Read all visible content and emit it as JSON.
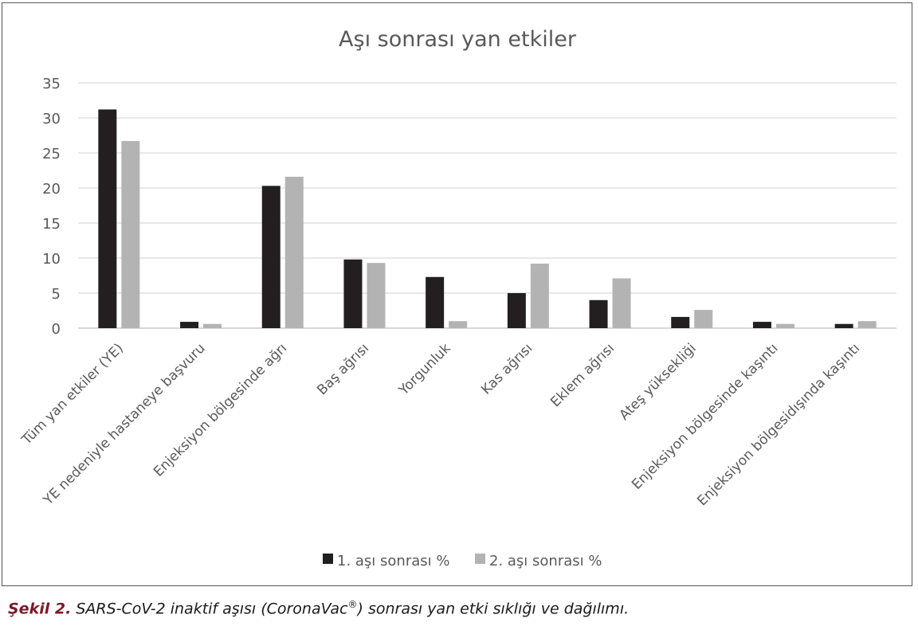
{
  "chart_data": {
    "type": "bar",
    "title": "Aşı sonrası yan etkiler",
    "categories": [
      "Tüm yan etkiler (YE)",
      "YE nedeniyle hastaneye başvuru",
      "Enjeksiyon bölgesinde ağrı",
      "Baş ağrısı",
      "Yorgunluk",
      "Kas ağrısı",
      "Eklem ağrısı",
      "Ateş yüksekliği",
      "Enjeksiyon bölgesinde kaşıntı",
      "Enjeksiyon bölgesidışında kaşıntı"
    ],
    "series": [
      {
        "name": "1. aşı sonrası %",
        "color": "#231f20",
        "values": [
          31.2,
          0.9,
          20.3,
          9.8,
          7.3,
          5.0,
          4.0,
          1.6,
          0.9,
          0.6
        ]
      },
      {
        "name": "2. aşı sonrası %",
        "color": "#b3b3b3",
        "values": [
          26.7,
          0.6,
          21.6,
          9.3,
          1.0,
          9.2,
          7.1,
          2.6,
          0.6,
          1.0
        ]
      }
    ],
    "ylim": [
      0,
      35
    ],
    "yticks": [
      0,
      5,
      10,
      15,
      20,
      25,
      30,
      35
    ],
    "grid": true,
    "legend": "bottom"
  },
  "caption": {
    "label": "Şekil 2.",
    "text_before": " SARS-CoV-2 inaktif aşısı (CoronaVac",
    "sup": "®",
    "text_after": ") sonrası yan etki sıklığı ve dağılımı."
  }
}
